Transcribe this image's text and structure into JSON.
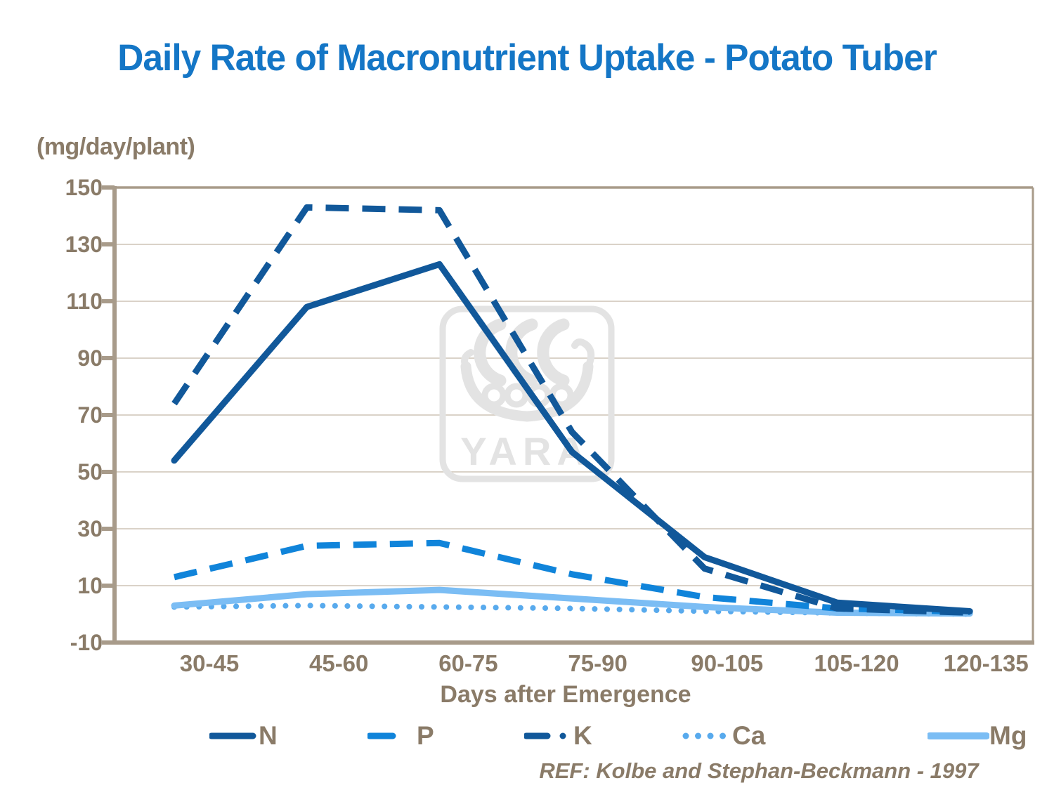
{
  "chart_data": {
    "type": "line",
    "title": "Daily Rate of Macronutrient Uptake - Potato Tuber",
    "y_unit": "(mg/day/plant)",
    "xlabel": "Days after Emergence",
    "ylabel": "",
    "ylim": [
      -10,
      150
    ],
    "y_ticks": [
      150,
      130,
      110,
      90,
      70,
      50,
      30,
      10,
      -10
    ],
    "grid": true,
    "legend_position": "bottom",
    "categories": [
      "30-45",
      "45-60",
      "60-75",
      "75-90",
      "90-105",
      "105-120",
      "120-135"
    ],
    "series": [
      {
        "name": "N",
        "color": "#11589A",
        "line_style": "solid",
        "legend_swatch": "line",
        "values": [
          54,
          108,
          123,
          57,
          20,
          4,
          1
        ]
      },
      {
        "name": "P",
        "color": "#1084DA",
        "line_style": "dashed",
        "legend_swatch": "dash",
        "values": [
          13,
          24,
          25,
          14,
          6,
          2,
          0.8
        ]
      },
      {
        "name": "K",
        "color": "#11589A",
        "line_style": "dashed",
        "legend_swatch": "dash-dot",
        "values": [
          74,
          143,
          142,
          64,
          16,
          2,
          0.5
        ]
      },
      {
        "name": "Ca",
        "color": "#58AAED",
        "line_style": "dotted",
        "legend_swatch": "dots",
        "values": [
          2.5,
          3,
          2.5,
          2,
          1,
          0.4,
          0
        ]
      },
      {
        "name": "Mg",
        "color": "#7BBDF4",
        "line_style": "solid",
        "legend_swatch": "line-thick",
        "values": [
          3,
          7,
          8.5,
          5.5,
          2.5,
          0.5,
          0.2
        ]
      }
    ],
    "reference": "REF: Kolbe and Stephan-Beckmann - 1997",
    "watermark": "YARA",
    "colors": {
      "title": "#1476C6",
      "axis_text": "#8A7B68",
      "axis_line": "#A89B8A",
      "gridline": "#CDC4B5",
      "watermark": "#E3E3E3"
    }
  }
}
